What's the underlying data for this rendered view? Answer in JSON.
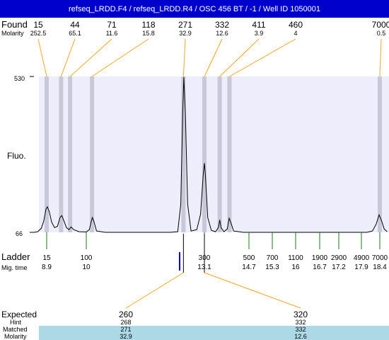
{
  "title": "refseq_LRDD.F4 / refseq_LRDD.R4 / OSC 456 BT / -1 / Well ID 1050001",
  "labels": {
    "found": "Found",
    "molarity": "Molarity",
    "fluo": "Fluo.",
    "ladder": "Ladder",
    "mig_time": "Mig. time",
    "expected": "Expected",
    "hint": "Hint",
    "matched": "Matched",
    "molarity_bottom": "Molarity"
  },
  "colors": {
    "title_bg": "#0000cc",
    "plot_bg": "#ededfb",
    "peak_band": "#c8c8d8",
    "orange_line": "#f5a623",
    "ladder_tick": "#1a7a1a",
    "marker_tick": "#0000cc",
    "table_band": "#add8e6"
  },
  "chart_data": {
    "type": "line",
    "y_axis": {
      "top_label": "530",
      "bottom_label": "66",
      "ylim": [
        66,
        530
      ]
    },
    "found": [
      {
        "size": "15",
        "molarity": "252.5",
        "mig_time": 8.9
      },
      {
        "size": "44",
        "molarity": "65.1",
        "mig_time": 9.3
      },
      {
        "size": "71",
        "molarity": "11.6",
        "mig_time": 9.55
      },
      {
        "size": "118",
        "molarity": "15.8",
        "mig_time": 10.15
      },
      {
        "size": "271",
        "molarity": "32.9",
        "mig_time": 12.55
      },
      {
        "size": "332",
        "molarity": "12.6",
        "mig_time": 13.1
      },
      {
        "size": "411",
        "molarity": "3.9",
        "mig_time": 13.65
      },
      {
        "size": "460",
        "molarity": "4",
        "mig_time": 14.0
      },
      {
        "size": "7000",
        "molarity": "0.5",
        "mig_time": 18.4
      }
    ],
    "trace": [
      [
        8.45,
        66
      ],
      [
        8.55,
        66
      ],
      [
        8.65,
        68
      ],
      [
        8.75,
        78
      ],
      [
        8.82,
        100
      ],
      [
        8.88,
        135
      ],
      [
        8.92,
        142
      ],
      [
        8.97,
        128
      ],
      [
        9.04,
        96
      ],
      [
        9.12,
        80
      ],
      [
        9.2,
        84
      ],
      [
        9.27,
        110
      ],
      [
        9.32,
        116
      ],
      [
        9.38,
        100
      ],
      [
        9.45,
        80
      ],
      [
        9.52,
        74
      ],
      [
        9.58,
        82
      ],
      [
        9.65,
        74
      ],
      [
        9.8,
        68
      ],
      [
        10.0,
        67
      ],
      [
        10.08,
        74
      ],
      [
        10.13,
        98
      ],
      [
        10.16,
        110
      ],
      [
        10.2,
        98
      ],
      [
        10.27,
        70
      ],
      [
        10.5,
        66
      ],
      [
        11.5,
        66
      ],
      [
        12.2,
        66
      ],
      [
        12.4,
        68
      ],
      [
        12.48,
        150
      ],
      [
        12.53,
        420
      ],
      [
        12.56,
        528
      ],
      [
        12.6,
        420
      ],
      [
        12.66,
        150
      ],
      [
        12.75,
        70
      ],
      [
        12.9,
        74
      ],
      [
        13.0,
        120
      ],
      [
        13.07,
        240
      ],
      [
        13.1,
        272
      ],
      [
        13.14,
        230
      ],
      [
        13.22,
        110
      ],
      [
        13.35,
        72
      ],
      [
        13.5,
        68
      ],
      [
        13.6,
        80
      ],
      [
        13.65,
        103
      ],
      [
        13.7,
        80
      ],
      [
        13.8,
        68
      ],
      [
        13.92,
        76
      ],
      [
        13.99,
        108
      ],
      [
        14.05,
        95
      ],
      [
        14.15,
        70
      ],
      [
        14.5,
        66
      ],
      [
        16.0,
        66
      ],
      [
        17.5,
        66
      ],
      [
        18.05,
        66
      ],
      [
        18.2,
        70
      ],
      [
        18.3,
        90
      ],
      [
        18.38,
        118
      ],
      [
        18.45,
        100
      ],
      [
        18.52,
        76
      ],
      [
        18.6,
        68
      ]
    ],
    "ladder": [
      {
        "size": "15",
        "mig_time": "8.9"
      },
      {
        "size": "100",
        "mig_time": "10"
      },
      {
        "size": "300",
        "mig_time": "13.1"
      },
      {
        "size": "500",
        "mig_time": "14.7"
      },
      {
        "size": "700",
        "mig_time": "15.3"
      },
      {
        "size": "1100",
        "mig_time": "16"
      },
      {
        "size": "1900",
        "mig_time": "16.7"
      },
      {
        "size": "2900",
        "mig_time": "17.2"
      },
      {
        "size": "4900",
        "mig_time": "17.9"
      },
      {
        "size": "7000",
        "mig_time": "18.4"
      }
    ],
    "marker_time": 12.45,
    "expected": [
      {
        "expected": "260",
        "hint": "268",
        "matched": "271",
        "molarity": "32.9",
        "mig_time": 12.55
      },
      {
        "expected": "320",
        "hint": "332",
        "matched": "332",
        "molarity": "12.6",
        "mig_time": 13.1
      }
    ]
  }
}
